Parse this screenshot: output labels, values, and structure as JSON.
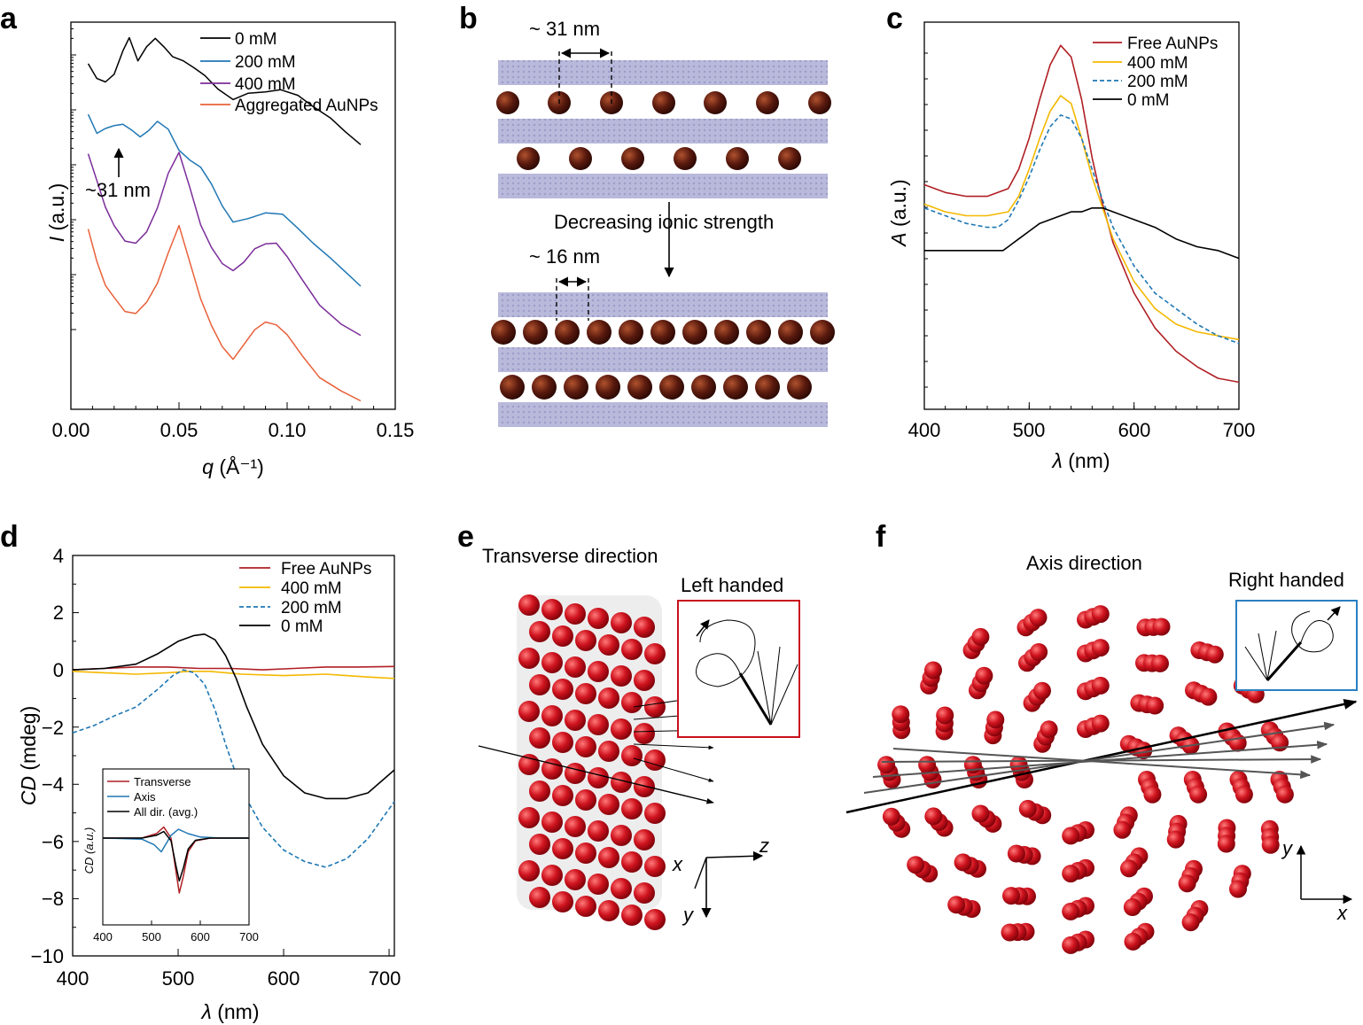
{
  "panels": {
    "a": {
      "letter": "a",
      "legend": [
        "0 mM",
        "200 mM",
        "400 mM",
        "Aggregated AuNPs"
      ],
      "annotation": "~31 nm",
      "xticks": [
        "0.00",
        "0.05",
        "0.10",
        "0.15"
      ],
      "xlabel_var": "q",
      "xlabel_unit": " (Å⁻¹)",
      "ylabel_var": "I",
      "ylabel_unit": " (a.u.)"
    },
    "b": {
      "letter": "b",
      "spacing_top": "~ 31 nm",
      "spacing_bottom": "~ 16 nm",
      "middle_label": "Decreasing ionic strength"
    },
    "c": {
      "letter": "c",
      "legend": [
        "Free AuNPs",
        "400 mM",
        "200 mM",
        "0 mM"
      ],
      "xticks": [
        "400",
        "500",
        "600",
        "700"
      ],
      "xlabel_var": "λ",
      "xlabel_unit": " (nm)",
      "ylabel_var": "A",
      "ylabel_unit": " (a.u.)"
    },
    "d": {
      "letter": "d",
      "legend": [
        "Free AuNPs",
        "400 mM",
        "200 mM",
        "0 mM"
      ],
      "xticks": [
        "400",
        "500",
        "600",
        "700"
      ],
      "yticks": [
        "4",
        "2",
        "0",
        "−2",
        "−4",
        "−6",
        "−8",
        "−10"
      ],
      "xlabel_var": "λ",
      "xlabel_unit": " (nm)",
      "ylabel_var": "CD",
      "ylabel_unit": " (mdeg)",
      "inset": {
        "legend": [
          "Transverse",
          "Axis",
          "All dir. (avg.)"
        ],
        "xticks": [
          "400",
          "500",
          "600",
          "700"
        ],
        "ylabel": "CD (a.u.)"
      }
    },
    "e": {
      "letter": "e",
      "title": "Transverse direction",
      "handed_label": "Left handed",
      "axes": [
        "x",
        "z",
        "y"
      ]
    },
    "f": {
      "letter": "f",
      "title": "Axis direction",
      "handed_label": "Right handed",
      "axes": [
        "y",
        "x"
      ]
    }
  },
  "colors": {
    "black": "#000000",
    "blue": "#1f77b4",
    "purple": "#7b2d9a",
    "orange": "#e8603a",
    "darkred": "#b01f24",
    "yellow": "#f4b800",
    "bead": "#c8101c",
    "rod": "#b4b4d8",
    "np": "#5a1a0e",
    "bluebox": "#2a7fc1",
    "redbox": "#c8101c"
  },
  "chart_data": [
    {
      "panel": "a",
      "type": "line",
      "title": "",
      "xlabel": "q (Å⁻¹)",
      "ylabel": "I (a.u.)",
      "xlim": [
        0.0,
        0.15
      ],
      "yscale": "log (curves offset vertically)",
      "series": [
        {
          "name": "0 mM",
          "x": [
            0.008,
            0.012,
            0.016,
            0.02,
            0.024,
            0.027,
            0.031,
            0.035,
            0.039,
            0.043,
            0.047,
            0.052,
            0.057,
            0.062,
            0.068,
            0.075,
            0.082,
            0.09,
            0.097,
            0.105,
            0.112,
            0.12,
            0.127,
            0.134
          ],
          "y": [
            0.59,
            0.8,
            0.85,
            0.74,
            0.41,
            0.22,
            0.55,
            0.35,
            0.23,
            0.35,
            0.49,
            0.55,
            0.65,
            0.76,
            0.95,
            1.1,
            1.01,
            0.99,
            0.96,
            1.04,
            1.2,
            1.36,
            1.56,
            1.74
          ]
        },
        {
          "name": "200 mM",
          "x": [
            0.008,
            0.012,
            0.016,
            0.02,
            0.024,
            0.028,
            0.032,
            0.036,
            0.04,
            0.045,
            0.05,
            0.055,
            0.06,
            0.065,
            0.07,
            0.075,
            0.082,
            0.09,
            0.098,
            0.105,
            0.112,
            0.12,
            0.127,
            0.134
          ],
          "y": [
            1.31,
            1.58,
            1.51,
            1.47,
            1.45,
            1.53,
            1.63,
            1.54,
            1.41,
            1.52,
            1.82,
            1.96,
            2.06,
            2.3,
            2.61,
            2.84,
            2.79,
            2.71,
            2.73,
            2.93,
            3.14,
            3.35,
            3.55,
            3.75
          ]
        },
        {
          "name": "400 mM",
          "x": [
            0.008,
            0.012,
            0.016,
            0.02,
            0.025,
            0.03,
            0.035,
            0.04,
            0.045,
            0.05,
            0.055,
            0.06,
            0.065,
            0.07,
            0.075,
            0.08,
            0.085,
            0.09,
            0.095,
            0.1,
            0.107,
            0.115,
            0.125,
            0.134
          ],
          "y": [
            1.87,
            2.25,
            2.63,
            2.89,
            3.11,
            3.14,
            2.98,
            2.64,
            2.15,
            1.85,
            2.35,
            2.88,
            3.2,
            3.43,
            3.53,
            3.41,
            3.22,
            3.15,
            3.14,
            3.33,
            3.66,
            4.02,
            4.29,
            4.45
          ]
        },
        {
          "name": "Aggregated AuNPs",
          "x": [
            0.008,
            0.012,
            0.016,
            0.02,
            0.025,
            0.03,
            0.035,
            0.04,
            0.045,
            0.05,
            0.055,
            0.06,
            0.065,
            0.07,
            0.075,
            0.08,
            0.085,
            0.09,
            0.095,
            0.1,
            0.107,
            0.115,
            0.125,
            0.134
          ],
          "y": [
            2.94,
            3.4,
            3.74,
            3.91,
            4.11,
            4.14,
            3.98,
            3.71,
            3.28,
            2.89,
            3.41,
            3.93,
            4.31,
            4.61,
            4.79,
            4.58,
            4.37,
            4.26,
            4.3,
            4.44,
            4.74,
            5.05,
            5.24,
            5.38
          ]
        }
      ],
      "annotation": "~31 nm"
    },
    {
      "panel": "c",
      "type": "line",
      "title": "",
      "xlabel": "λ (nm)",
      "ylabel": "A (a.u.)",
      "xlim": [
        400,
        700
      ],
      "ylim": [
        0,
        1
      ],
      "series": [
        {
          "name": "Free AuNPs",
          "x": [
            400,
            420,
            440,
            460,
            480,
            490,
            500,
            510,
            520,
            530,
            540,
            550,
            560,
            570,
            580,
            600,
            620,
            640,
            660,
            680,
            700
          ],
          "y": [
            0.58,
            0.56,
            0.55,
            0.55,
            0.57,
            0.62,
            0.7,
            0.8,
            0.89,
            0.94,
            0.91,
            0.8,
            0.65,
            0.53,
            0.43,
            0.3,
            0.21,
            0.15,
            0.11,
            0.08,
            0.07
          ]
        },
        {
          "name": "400 mM",
          "x": [
            400,
            420,
            440,
            460,
            480,
            490,
            500,
            510,
            520,
            530,
            540,
            550,
            560,
            570,
            580,
            600,
            620,
            640,
            660,
            680,
            700
          ],
          "y": [
            0.53,
            0.51,
            0.5,
            0.5,
            0.51,
            0.55,
            0.62,
            0.7,
            0.77,
            0.81,
            0.79,
            0.7,
            0.6,
            0.52,
            0.44,
            0.33,
            0.26,
            0.22,
            0.2,
            0.19,
            0.18
          ]
        },
        {
          "name": "200 mM",
          "x": [
            400,
            420,
            440,
            460,
            470,
            475,
            480,
            490,
            500,
            510,
            520,
            530,
            540,
            550,
            560,
            570,
            580,
            600,
            620,
            640,
            660,
            680,
            700
          ],
          "y": [
            0.52,
            0.5,
            0.48,
            0.47,
            0.47,
            0.48,
            0.49,
            0.54,
            0.6,
            0.67,
            0.73,
            0.76,
            0.75,
            0.7,
            0.62,
            0.54,
            0.47,
            0.37,
            0.3,
            0.26,
            0.22,
            0.19,
            0.17
          ]
        },
        {
          "name": "0 mM",
          "x": [
            400,
            420,
            440,
            460,
            475,
            480,
            490,
            500,
            510,
            520,
            530,
            540,
            550,
            560,
            570,
            580,
            600,
            620,
            640,
            660,
            680,
            700
          ],
          "y": [
            0.41,
            0.41,
            0.41,
            0.41,
            0.41,
            0.42,
            0.44,
            0.46,
            0.48,
            0.49,
            0.5,
            0.51,
            0.51,
            0.52,
            0.52,
            0.51,
            0.49,
            0.47,
            0.44,
            0.42,
            0.41,
            0.39
          ]
        }
      ]
    },
    {
      "panel": "d",
      "type": "line",
      "title": "",
      "xlabel": "λ (nm)",
      "ylabel": "CD (mdeg)",
      "xlim": [
        400,
        705
      ],
      "ylim": [
        -10,
        4
      ],
      "series": [
        {
          "name": "Free AuNPs",
          "x": [
            400,
            430,
            460,
            490,
            520,
            550,
            580,
            610,
            640,
            670,
            705
          ],
          "y": [
            0.0,
            0.05,
            0.1,
            0.1,
            0.05,
            0.05,
            0.0,
            0.05,
            0.1,
            0.1,
            0.12
          ]
        },
        {
          "name": "400 mM",
          "x": [
            400,
            430,
            460,
            490,
            510,
            530,
            560,
            600,
            640,
            680,
            705
          ],
          "y": [
            -0.05,
            -0.1,
            -0.15,
            -0.1,
            -0.05,
            -0.05,
            -0.15,
            -0.2,
            -0.15,
            -0.25,
            -0.3
          ]
        },
        {
          "name": "200 mM",
          "x": [
            400,
            420,
            440,
            460,
            480,
            495,
            505,
            515,
            525,
            535,
            545,
            560,
            580,
            600,
            620,
            640,
            660,
            680,
            705
          ],
          "y": [
            -2.2,
            -1.95,
            -1.6,
            -1.3,
            -0.7,
            -0.2,
            0.0,
            -0.1,
            -0.5,
            -1.4,
            -2.6,
            -4.2,
            -5.5,
            -6.3,
            -6.7,
            -6.9,
            -6.6,
            -5.9,
            -4.6
          ]
        },
        {
          "name": "0 mM",
          "x": [
            400,
            430,
            460,
            480,
            500,
            515,
            525,
            535,
            545,
            555,
            565,
            580,
            600,
            620,
            640,
            660,
            680,
            705
          ],
          "y": [
            0.0,
            0.05,
            0.2,
            0.55,
            1.0,
            1.2,
            1.25,
            1.05,
            0.5,
            -0.3,
            -1.3,
            -2.6,
            -3.7,
            -4.3,
            -4.5,
            -4.5,
            -4.3,
            -3.5
          ]
        }
      ],
      "inset": {
        "type": "line",
        "xlim": [
          400,
          700
        ],
        "ylabel": "CD (a.u.)",
        "series": [
          {
            "name": "Transverse",
            "x": [
              400,
              480,
              510,
              525,
              540,
              550,
              557,
              565,
              575,
              590,
              620,
              700
            ],
            "y": [
              0.0,
              0.0,
              0.08,
              0.2,
              0.0,
              -0.6,
              -1.0,
              -0.7,
              -0.25,
              -0.05,
              0.0,
              0.0
            ]
          },
          {
            "name": "Axis",
            "x": [
              400,
              480,
              505,
              520,
              530,
              540,
              555,
              575,
              600,
              640,
              700
            ],
            "y": [
              0.0,
              -0.02,
              -0.12,
              -0.25,
              -0.1,
              0.05,
              0.16,
              0.08,
              0.02,
              0.0,
              0.0
            ]
          },
          {
            "name": "All dir. (avg.)",
            "x": [
              400,
              480,
              510,
              525,
              540,
              550,
              557,
              565,
              575,
              590,
              620,
              700
            ],
            "y": [
              0.0,
              0.0,
              0.05,
              0.12,
              -0.05,
              -0.5,
              -0.78,
              -0.55,
              -0.2,
              -0.04,
              0.0,
              0.0
            ]
          }
        ]
      }
    }
  ]
}
